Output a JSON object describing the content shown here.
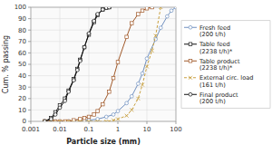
{
  "chart_data": {
    "type": "line",
    "xlabel": "Particle size (mm)",
    "ylabel": "Cum. % passing",
    "log": "x",
    "xlim": [
      0.001,
      100
    ],
    "ylim": [
      0,
      100
    ],
    "xticks": [
      0.001,
      0.01,
      0.1,
      1,
      10,
      100
    ],
    "yticks": [
      0,
      10,
      20,
      30,
      40,
      50,
      60,
      70,
      80,
      90,
      100
    ],
    "grid": true,
    "legend": "right",
    "series": [
      {
        "name": "Fresh feed\n(200 t/h)",
        "color": "#7090c0",
        "marker": "circle",
        "line_style": "solid",
        "x": [
          0.003,
          0.005,
          0.007,
          0.01,
          0.02,
          0.04,
          0.07,
          0.1,
          0.2,
          0.4,
          0.7,
          1.0,
          2.0,
          3.0,
          5.0,
          7.0,
          10.0,
          20.0,
          30.0,
          50.0,
          70.0,
          100.0
        ],
        "values": [
          0,
          0,
          0,
          0,
          0,
          0,
          1,
          1,
          2,
          4,
          6,
          9,
          16,
          22,
          33,
          42,
          55,
          72,
          82,
          92,
          97,
          100
        ]
      },
      {
        "name": "Table feed\n(2238 t/h)*",
        "color": "#111111",
        "marker": "square",
        "line_style": "solid",
        "x": [
          0.003,
          0.005,
          0.007,
          0.01,
          0.015,
          0.02,
          0.03,
          0.04,
          0.05,
          0.07,
          0.1,
          0.15,
          0.2,
          0.3,
          0.4,
          0.5
        ],
        "values": [
          0,
          3,
          8,
          14,
          20,
          27,
          37,
          46,
          54,
          65,
          76,
          87,
          93,
          98,
          99.5,
          100
        ]
      },
      {
        "name": "Table product\n(2238 t/h)*",
        "color": "#a05828",
        "marker": "square",
        "line_style": "solid",
        "x": [
          0.003,
          0.005,
          0.007,
          0.01,
          0.015,
          0.02,
          0.03,
          0.05,
          0.07,
          0.1,
          0.15,
          0.2,
          0.3,
          0.5,
          0.7,
          1.0,
          2.0,
          3.0,
          5.0,
          7.0,
          10.0,
          15.0
        ],
        "values": [
          0,
          0,
          0,
          0,
          0,
          0,
          1,
          2,
          3,
          4,
          6,
          9,
          15,
          26,
          38,
          52,
          74,
          86,
          94,
          97,
          99,
          100
        ]
      },
      {
        "name": "External circ. load\n(161 t/h)",
        "color": "#c8a040",
        "marker": "x",
        "line_style": "dashed",
        "x": [
          0.003,
          0.005,
          0.01,
          0.02,
          0.05,
          0.1,
          0.2,
          0.4,
          0.7,
          1.0,
          2.0,
          3.0,
          5.0,
          7.0,
          10.0,
          15.0,
          20.0,
          30.0
        ],
        "values": [
          0,
          0,
          0,
          0,
          0,
          0,
          0,
          0,
          1,
          2,
          5,
          10,
          20,
          32,
          48,
          62,
          75,
          100
        ]
      },
      {
        "name": "Final product\n(200 t/h)",
        "color": "#111111",
        "marker": "circle",
        "line_style": "solid",
        "x": [
          0.003,
          0.005,
          0.007,
          0.01,
          0.015,
          0.02,
          0.03,
          0.04,
          0.05,
          0.07,
          0.1,
          0.15,
          0.2,
          0.3,
          0.4,
          0.5
        ],
        "values": [
          0,
          2,
          6,
          12,
          18,
          26,
          36,
          45,
          53,
          65,
          77,
          88,
          94,
          98,
          99.5,
          100
        ]
      }
    ]
  }
}
